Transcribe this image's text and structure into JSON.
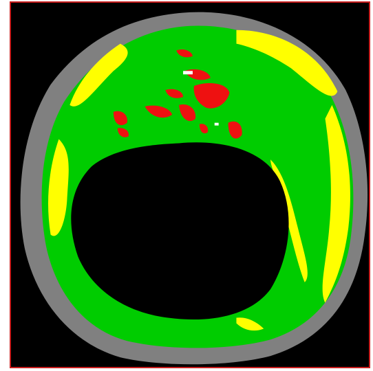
{
  "image": {
    "background_color": "#000000",
    "frame_border_color": "#c81e1e",
    "colors": {
      "ring_gray": "#808080",
      "tissue_green": "#00cc00",
      "tissue_yellow": "#ffff00",
      "tissue_red": "#ee1111",
      "highlight_white": "#ffffff",
      "lumen_black": "#000000"
    }
  }
}
